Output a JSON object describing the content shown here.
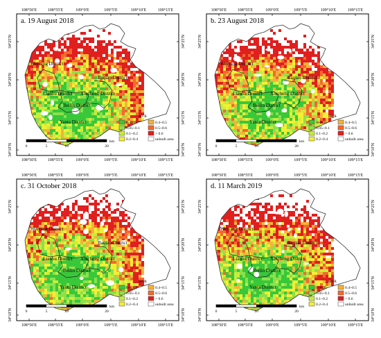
{
  "panels": [
    {
      "title": "a. 19 August 2018",
      "variant": 0
    },
    {
      "title": "b. 23 August 2018",
      "variant": 1
    },
    {
      "title": "c. 31 October 2018",
      "variant": 2
    },
    {
      "title": "d. 11 March 2019",
      "variant": 3
    }
  ],
  "axes": {
    "top_ticks": [
      "108°50′E",
      "108°55′E",
      "109°0′E",
      "109°5′E",
      "109°10′E",
      "109°15′E"
    ],
    "bottom_ticks": [
      "108°50′E",
      "108°55′E",
      "109°0′E",
      "109°5′E",
      "109°10′E",
      "109°15′E"
    ],
    "right_ticks": [
      "34°25′N",
      "34°20′N",
      "34°15′N",
      "34°10′N"
    ],
    "left_ticks": [
      "34°25′N",
      "34°20′N",
      "34°15′N",
      "34°10′N"
    ]
  },
  "districts": [
    "Weiyang District",
    "Baqiao District",
    "Xincheng District",
    "Lianhu District",
    "Beilin District",
    "Yanta District"
  ],
  "scale_bar": {
    "labels": [
      "0",
      "5",
      "10",
      "20"
    ],
    "unit": "km"
  },
  "legend": {
    "title": "HVR",
    "items": [
      {
        "label": "0~0.05",
        "color": "#38c83a"
      },
      {
        "label": "0.05~0.1",
        "color": "#8ee04a"
      },
      {
        "label": "0.1~0.2",
        "color": "#c8ec3c"
      },
      {
        "label": "0.2~0.4",
        "color": "#f3ef33"
      },
      {
        "label": "0.4~0.5",
        "color": "#f4b33a"
      },
      {
        "label": "0.5~0.6",
        "color": "#f26a2c"
      },
      {
        "label": "> 0.6",
        "color": "#e01f1f"
      },
      {
        "label": "unbuilt area",
        "color": "#ffffff"
      }
    ]
  }
}
